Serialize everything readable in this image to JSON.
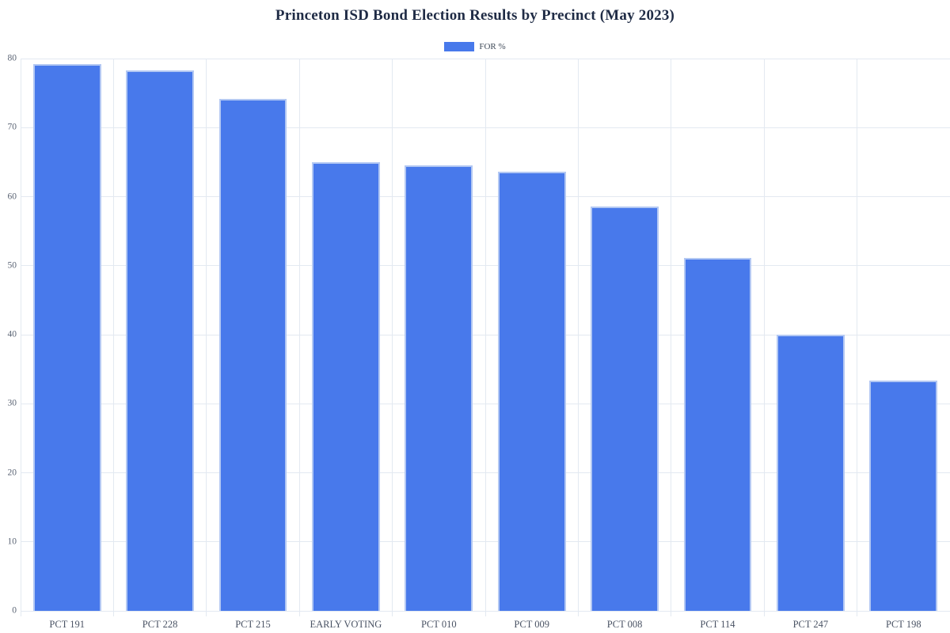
{
  "title": "Princeton ISD Bond Election Results by Precinct (May 2023)",
  "legend": {
    "label": "FOR %"
  },
  "colors": {
    "bar_fill": "#4879eb",
    "bar_border": "#b3c8f3",
    "gridline": "#e3e9f1",
    "title_text": "#1f2b45",
    "axis_tick_text": "#5c6575",
    "category_text": "#4a5364",
    "background": "#ffffff"
  },
  "chart_data": {
    "type": "bar",
    "title": "Princeton ISD Bond Election Results by Precinct (May 2023)",
    "categories": [
      "PCT 191",
      "PCT 228",
      "PCT 215",
      "EARLY VOTING",
      "PCT 010",
      "PCT 009",
      "PCT 008",
      "PCT 114",
      "PCT 247",
      "PCT 198"
    ],
    "series": [
      {
        "name": "FOR %",
        "values": [
          79.2,
          78.3,
          74.2,
          65.0,
          64.5,
          63.6,
          58.6,
          51.1,
          40.0,
          33.3
        ]
      }
    ],
    "xlabel": "",
    "ylabel": "",
    "ylim": [
      0,
      80
    ],
    "yticks": [
      0,
      10,
      20,
      30,
      40,
      50,
      60,
      70,
      80
    ],
    "grid": true,
    "legend_position": "top-center"
  }
}
